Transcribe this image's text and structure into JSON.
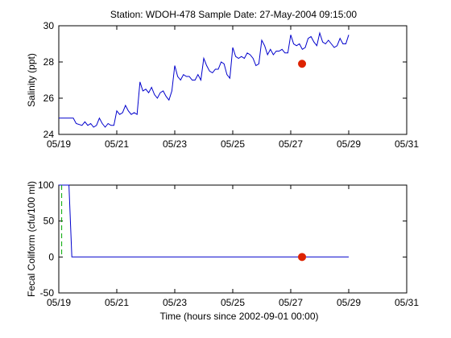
{
  "figure_title": "Station: WDOH-478  Sample Date: 27-May-2004 09:15:00",
  "chart_data": [
    {
      "type": "line",
      "ylabel": "Salinity (ppt)",
      "xlabel": "",
      "x_tick_labels": [
        "05/19",
        "05/21",
        "05/23",
        "05/25",
        "05/27",
        "05/29",
        "05/31"
      ],
      "x_ticks": [
        19,
        21,
        23,
        25,
        27,
        29,
        31
      ],
      "xlim": [
        19,
        31
      ],
      "ylim": [
        24,
        30
      ],
      "y_ticks": [
        24,
        26,
        28,
        30
      ],
      "y_tick_labels": [
        "24",
        "26",
        "28",
        "30"
      ],
      "grid": false,
      "series": [
        {
          "line_color": "#0000cc",
          "x": [
            19.0,
            19.5,
            19.6,
            19.8,
            19.9,
            20.0,
            20.1,
            20.2,
            20.3,
            20.4,
            20.5,
            20.6,
            20.7,
            20.8,
            20.9,
            21.0,
            21.1,
            21.2,
            21.3,
            21.4,
            21.5,
            21.6,
            21.7,
            21.75,
            21.8,
            21.9,
            22.0,
            22.1,
            22.2,
            22.3,
            22.4,
            22.5,
            22.6,
            22.7,
            22.8,
            22.9,
            23.0,
            23.1,
            23.2,
            23.3,
            23.4,
            23.5,
            23.6,
            23.7,
            23.8,
            23.9,
            24.0,
            24.1,
            24.2,
            24.3,
            24.4,
            24.5,
            24.6,
            24.7,
            24.8,
            24.9,
            25.0,
            25.1,
            25.2,
            25.3,
            25.4,
            25.5,
            25.6,
            25.7,
            25.8,
            25.9,
            26.0,
            26.1,
            26.2,
            26.3,
            26.4,
            26.5,
            26.6,
            26.7,
            26.8,
            26.9,
            27.0,
            27.1,
            27.2,
            27.3,
            27.4,
            27.5,
            27.6,
            27.7,
            27.8,
            27.9,
            28.0,
            28.1,
            28.2,
            28.3,
            28.4,
            28.5,
            28.6,
            28.7,
            28.8,
            28.9,
            29.0
          ],
          "y": [
            24.9,
            24.9,
            24.6,
            24.5,
            24.7,
            24.5,
            24.6,
            24.4,
            24.5,
            24.9,
            24.6,
            24.4,
            24.6,
            24.5,
            24.5,
            25.3,
            25.1,
            25.2,
            25.6,
            25.3,
            25.1,
            25.2,
            25.1,
            26.0,
            26.9,
            26.4,
            26.5,
            26.3,
            26.6,
            26.2,
            26.0,
            26.3,
            26.4,
            26.1,
            25.9,
            26.4,
            27.8,
            27.2,
            27.0,
            27.3,
            27.2,
            27.2,
            27.0,
            27.0,
            27.3,
            27.0,
            28.2,
            27.8,
            27.5,
            27.4,
            27.6,
            27.6,
            28.0,
            27.9,
            27.3,
            27.1,
            28.8,
            28.3,
            28.2,
            28.3,
            28.2,
            28.5,
            28.4,
            28.2,
            27.8,
            27.9,
            29.2,
            28.9,
            28.4,
            28.7,
            28.4,
            28.6,
            28.6,
            28.7,
            28.5,
            28.5,
            29.5,
            29.0,
            28.9,
            29.0,
            28.7,
            28.8,
            29.3,
            29.4,
            29.1,
            28.9,
            29.6,
            29.1,
            29.0,
            29.2,
            29.0,
            28.8,
            28.9,
            29.3,
            29.0,
            29.0,
            29.5
          ]
        }
      ],
      "sample": {
        "x": 27.39,
        "y": 27.9,
        "color": "#dd2200"
      }
    },
    {
      "type": "line",
      "ylabel": "Fecal Coliform (cfu/100 ml)",
      "xlabel": "Time (hours since 2002-09-01 00:00)",
      "x_tick_labels": [
        "05/19",
        "05/21",
        "05/23",
        "05/25",
        "05/27",
        "05/29",
        "05/31"
      ],
      "x_ticks": [
        19,
        21,
        23,
        25,
        27,
        29,
        31
      ],
      "xlim": [
        19,
        31
      ],
      "ylim": [
        -50,
        100
      ],
      "y_ticks": [
        -50,
        0,
        50,
        100
      ],
      "y_tick_labels": [
        "-50",
        "0",
        "50",
        "100"
      ],
      "grid": false,
      "series": [
        {
          "line_color": "#0000cc",
          "x": [
            19.0,
            19.35,
            19.45,
            19.45,
            29.0
          ],
          "y": [
            100,
            100,
            0,
            0,
            0
          ]
        },
        {
          "line_color": "#00aa00",
          "dashed": true,
          "x": [
            19.1,
            19.1
          ],
          "y": [
            100,
            0
          ]
        }
      ],
      "sample": {
        "x": 27.39,
        "y": 0,
        "color": "#dd2200"
      }
    }
  ]
}
